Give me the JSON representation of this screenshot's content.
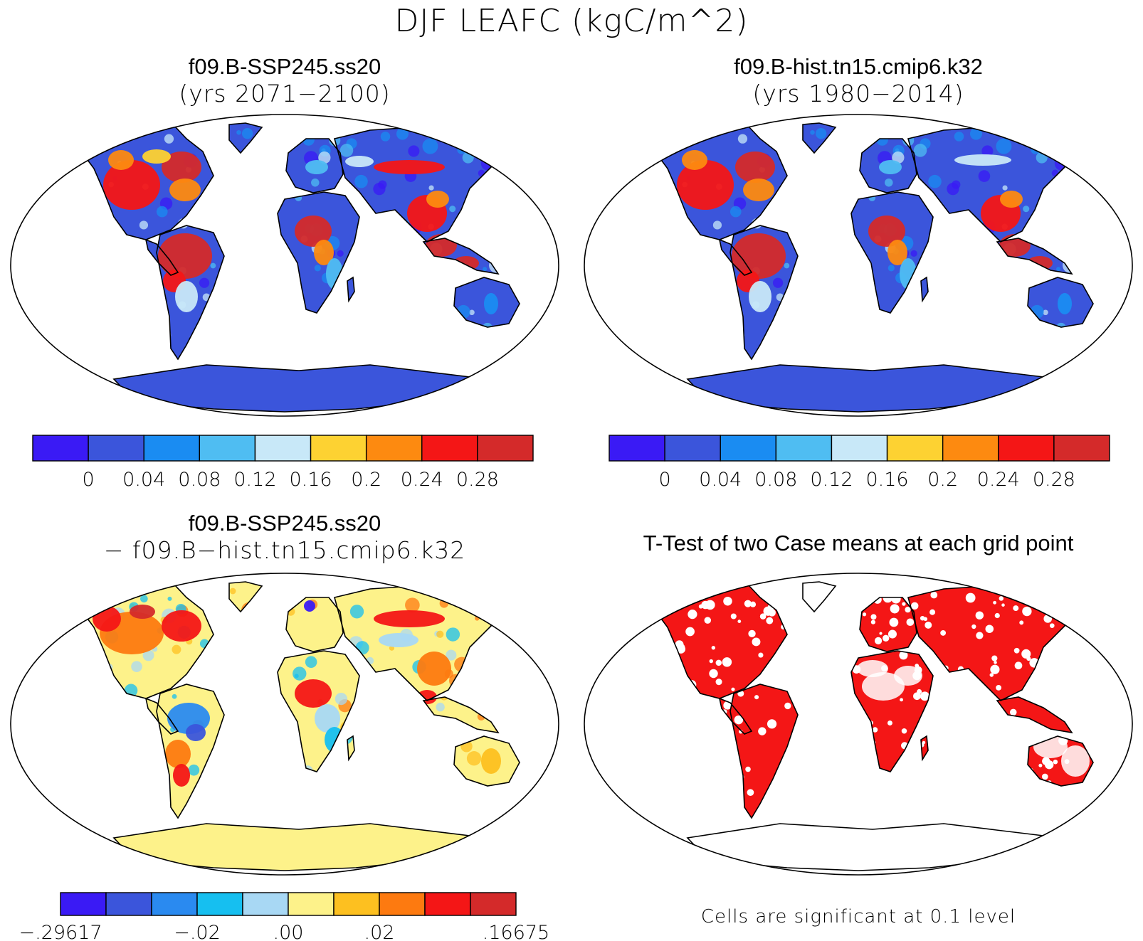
{
  "figure": {
    "title": "DJF LEAFC (kgC/m^2)"
  },
  "panels": [
    {
      "id": "case1",
      "title_line1": "f09.B-SSP245.ss20",
      "title_line2": "(yrs 2071−2100)"
    },
    {
      "id": "case2",
      "title_line1": "f09.B-hist.tn15.cmip6.k32",
      "title_line2": "(yrs 1980−2014)"
    },
    {
      "id": "difference",
      "title_line1": "f09.B-SSP245.ss20",
      "title_line2": "− f09.B−hist.tn15.cmip6.k32"
    },
    {
      "id": "ttest",
      "title_line1": "T-Test of two Case means at each grid point",
      "note": "Cells are significant at 0.1 level"
    }
  ],
  "chart_data": [
    {
      "type": "heatmap",
      "panel": "case1",
      "colorbar": {
        "colors": [
          "#3a1af5",
          "#3b55db",
          "#1a8cf2",
          "#4fbdf2",
          "#c8e8f8",
          "#fdd232",
          "#fd8a10",
          "#f41616",
          "#d42a2a"
        ],
        "ticks": [
          "0",
          "0.04",
          "0.08",
          "0.12",
          "0.16",
          "0.2",
          "0.24",
          "0.28"
        ]
      }
    },
    {
      "type": "heatmap",
      "panel": "case2",
      "colorbar": {
        "colors": [
          "#3a1af5",
          "#3b55db",
          "#1a8cf2",
          "#4fbdf2",
          "#c8e8f8",
          "#fdd232",
          "#fd8a10",
          "#f41616",
          "#d42a2a"
        ],
        "ticks": [
          "0",
          "0.04",
          "0.08",
          "0.12",
          "0.16",
          "0.2",
          "0.24",
          "0.28"
        ]
      }
    },
    {
      "type": "heatmap",
      "panel": "difference",
      "colorbar": {
        "colors": [
          "#3a1af5",
          "#3b55db",
          "#2a8af0",
          "#16bff0",
          "#a8d8f4",
          "#fdf28a",
          "#fdc020",
          "#fd7a10",
          "#f41616",
          "#d42a2a"
        ],
        "tick_labels": [
          {
            "label": "−.29617",
            "boundary": 0
          },
          {
            "label": "−.02",
            "boundary": 3
          },
          {
            "label": ".00",
            "boundary": 5
          },
          {
            "label": ".02",
            "boundary": 7
          },
          {
            "label": ".16675",
            "boundary": 10
          }
        ]
      }
    },
    {
      "type": "heatmap",
      "panel": "ttest",
      "significant_color": "#f41616"
    }
  ]
}
